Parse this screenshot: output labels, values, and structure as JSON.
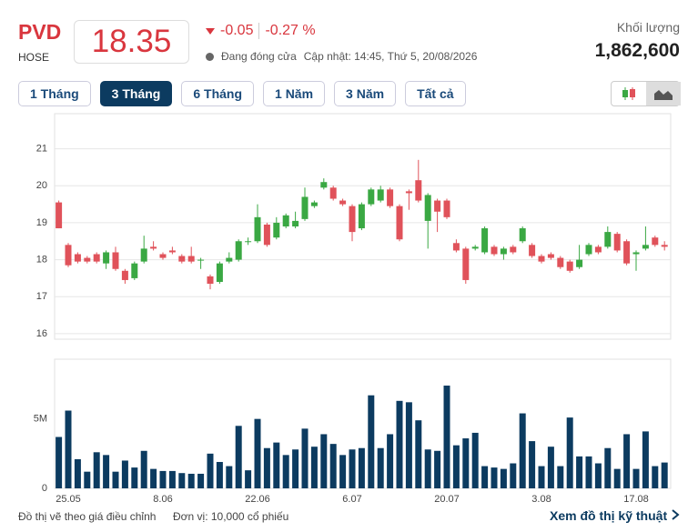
{
  "header": {
    "symbol": "PVD",
    "exchange": "HOSE",
    "price": "18.35",
    "change": "-0.05",
    "change_pct": "-0.27 %",
    "status": "Đang đóng cửa",
    "updated": "Cập nhật: 14:45, Thứ 5, 20/08/2026",
    "volume_label": "Khối lượng",
    "volume": "1,862,600"
  },
  "buttons": [
    "1 Tháng",
    "3 Tháng",
    "6 Tháng",
    "1 Năm",
    "3 Năm",
    "Tất cả"
  ],
  "active_button": 1,
  "chart_data": [
    {
      "type": "candlestick",
      "up_color": "#3aa843",
      "down_color": "#e0525a",
      "grid": true,
      "ylim": [
        15.85,
        21.95
      ],
      "yticks": [
        16,
        17,
        18,
        19,
        20,
        21
      ],
      "open": [
        19.55,
        18.4,
        18.15,
        18.05,
        18.15,
        17.9,
        18.2,
        17.7,
        17.5,
        17.95,
        18.35,
        18.15,
        18.25,
        18.1,
        18.1,
        18.0,
        17.55,
        17.4,
        17.95,
        18.0,
        18.5,
        18.5,
        18.95,
        18.6,
        18.9,
        18.9,
        19.1,
        19.45,
        19.95,
        19.95,
        19.6,
        19.45,
        18.85,
        19.5,
        19.6,
        19.9,
        19.45,
        19.85,
        20.15,
        19.05,
        19.6,
        19.6,
        18.45,
        18.3,
        18.3,
        18.2,
        18.35,
        18.15,
        18.35,
        18.5,
        18.4,
        18.1,
        18.15,
        18.05,
        17.95,
        17.8,
        18.15,
        18.35,
        18.35,
        18.7,
        18.5,
        18.15,
        18.3,
        18.6,
        18.4
      ],
      "high": [
        19.6,
        18.45,
        18.2,
        18.1,
        18.2,
        18.25,
        18.35,
        17.75,
        17.95,
        18.65,
        18.5,
        18.2,
        18.35,
        18.15,
        18.35,
        18.05,
        17.6,
        17.95,
        18.2,
        18.55,
        18.6,
        19.5,
        19.0,
        19.15,
        19.25,
        19.3,
        19.95,
        19.6,
        20.2,
        20.0,
        19.65,
        19.5,
        19.55,
        19.95,
        20.0,
        19.95,
        19.5,
        19.9,
        20.7,
        19.8,
        19.65,
        19.65,
        18.55,
        18.35,
        18.4,
        18.9,
        18.4,
        18.35,
        18.4,
        18.9,
        18.45,
        18.15,
        18.2,
        18.1,
        18.0,
        18.4,
        18.45,
        18.4,
        18.9,
        18.75,
        18.55,
        18.25,
        18.9,
        18.65,
        18.5
      ],
      "low": [
        18.85,
        17.8,
        17.9,
        17.9,
        17.9,
        17.75,
        17.7,
        17.35,
        17.45,
        17.9,
        18.25,
        18.0,
        18.15,
        17.9,
        17.9,
        17.75,
        17.2,
        17.35,
        17.9,
        17.95,
        18.4,
        18.45,
        18.35,
        18.55,
        18.85,
        18.85,
        19.05,
        19.4,
        19.9,
        19.6,
        19.45,
        18.5,
        18.8,
        19.45,
        19.55,
        19.4,
        18.5,
        19.35,
        19.55,
        18.3,
        18.75,
        19.1,
        18.2,
        17.35,
        18.25,
        18.15,
        18.1,
        18.0,
        18.15,
        18.45,
        18.05,
        17.9,
        18.0,
        17.75,
        17.65,
        17.75,
        18.1,
        18.15,
        18.3,
        18.2,
        17.85,
        17.7,
        18.25,
        18.35,
        18.25
      ],
      "close": [
        18.85,
        17.85,
        17.95,
        17.95,
        17.95,
        18.2,
        17.75,
        17.45,
        17.9,
        18.3,
        18.3,
        18.05,
        18.2,
        17.95,
        17.95,
        18.0,
        17.35,
        17.9,
        18.05,
        18.5,
        18.5,
        19.15,
        18.4,
        19.0,
        19.2,
        19.05,
        19.7,
        19.55,
        20.1,
        19.65,
        19.5,
        18.75,
        19.5,
        19.9,
        19.9,
        19.45,
        18.55,
        19.8,
        19.6,
        19.75,
        19.3,
        19.15,
        18.25,
        17.45,
        18.35,
        18.85,
        18.15,
        18.3,
        18.2,
        18.85,
        18.1,
        17.95,
        18.05,
        17.8,
        17.7,
        18.0,
        18.4,
        18.2,
        18.75,
        18.25,
        17.9,
        18.2,
        18.4,
        18.4,
        18.35
      ]
    },
    {
      "type": "bar",
      "color": "#0c3b60",
      "ylim": [
        0,
        9.3
      ],
      "yticks": [
        0,
        {
          "value": 5,
          "label": "5M"
        }
      ],
      "categories": [
        null,
        "25.05",
        null,
        null,
        null,
        null,
        null,
        null,
        null,
        null,
        null,
        "8.06",
        null,
        null,
        null,
        null,
        null,
        null,
        null,
        null,
        null,
        "22.06",
        null,
        null,
        null,
        null,
        null,
        null,
        null,
        null,
        null,
        "6.07",
        null,
        null,
        null,
        null,
        null,
        null,
        null,
        null,
        null,
        "20.07",
        null,
        null,
        null,
        null,
        null,
        null,
        null,
        null,
        null,
        "3.08",
        null,
        null,
        null,
        null,
        null,
        null,
        null,
        null,
        null,
        "17.08",
        null,
        null,
        null
      ],
      "values": [
        3.7,
        5.6,
        2.1,
        1.2,
        2.6,
        2.4,
        1.2,
        2.0,
        1.5,
        2.7,
        1.4,
        1.25,
        1.25,
        1.1,
        1.05,
        1.05,
        2.5,
        1.9,
        1.6,
        4.5,
        1.3,
        5.0,
        2.9,
        3.3,
        2.4,
        2.8,
        4.3,
        3.0,
        3.9,
        3.2,
        2.4,
        2.8,
        2.9,
        6.7,
        2.9,
        3.9,
        6.3,
        6.2,
        4.9,
        2.8,
        2.7,
        7.4,
        3.1,
        3.6,
        4.0,
        1.6,
        1.5,
        1.4,
        1.8,
        5.4,
        3.4,
        1.6,
        3.0,
        1.6,
        5.1,
        2.3,
        2.3,
        1.8,
        2.9,
        1.4,
        3.9,
        1.4,
        4.1,
        1.6,
        1.86
      ]
    }
  ],
  "footer": {
    "note": "Đồ thị vẽ theo giá điều chỉnh",
    "unit": "Đơn vị: 10,000 cổ phiếu",
    "link": "Xem đồ thị kỹ thuật"
  }
}
